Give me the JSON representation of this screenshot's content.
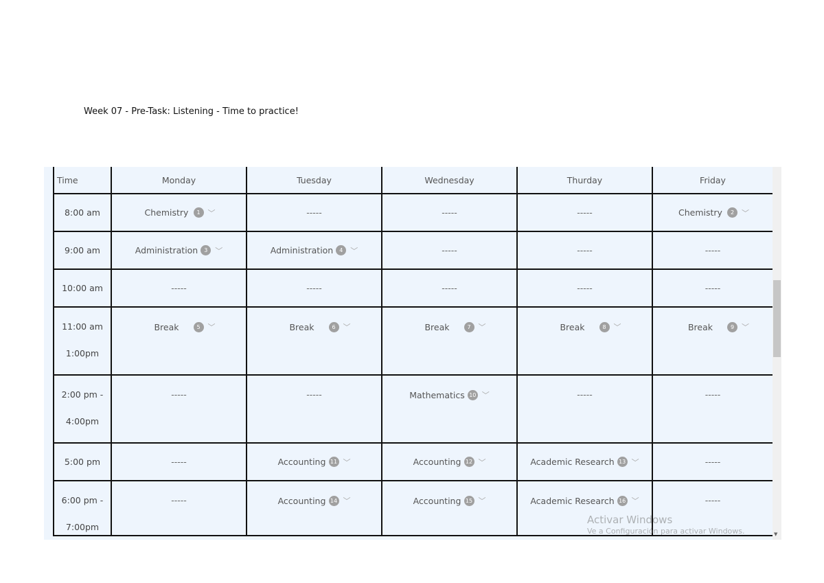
{
  "document_title": "Week 07 - Pre-Task: Listening - Time to practice!",
  "headers": [
    "Time",
    "Monday",
    "Tuesday",
    "Wednesday",
    "Thurday",
    "Friday"
  ],
  "rows": [
    {
      "time": [
        "8:00 am"
      ],
      "cells": [
        {
          "label": "Chemistry",
          "badge": "1"
        },
        {
          "label": "-----"
        },
        {
          "label": "-----"
        },
        {
          "label": "-----"
        },
        {
          "label": "Chemistry",
          "badge": "2"
        }
      ]
    },
    {
      "time": [
        "9:00 am"
      ],
      "cells": [
        {
          "label": "Administration",
          "badge": "3"
        },
        {
          "label": "Administration",
          "badge": "4"
        },
        {
          "label": "-----"
        },
        {
          "label": "-----"
        },
        {
          "label": "-----"
        }
      ]
    },
    {
      "time": [
        "10:00 am"
      ],
      "cells": [
        {
          "label": "-----"
        },
        {
          "label": "-----"
        },
        {
          "label": "-----"
        },
        {
          "label": "-----"
        },
        {
          "label": "-----"
        }
      ]
    },
    {
      "time": [
        "11:00 am",
        "1:00pm"
      ],
      "cells": [
        {
          "label": "Break",
          "badge": "5"
        },
        {
          "label": "Break",
          "badge": "6"
        },
        {
          "label": "Break",
          "badge": "7"
        },
        {
          "label": "Break",
          "badge": "8"
        },
        {
          "label": "Break",
          "badge": "9"
        }
      ]
    },
    {
      "time": [
        "2:00 pm -",
        "4:00pm"
      ],
      "cells": [
        {
          "label": "-----"
        },
        {
          "label": "-----"
        },
        {
          "label": "Mathematics",
          "badge": "10"
        },
        {
          "label": "-----"
        },
        {
          "label": "-----"
        }
      ]
    },
    {
      "time": [
        "5:00 pm"
      ],
      "cells": [
        {
          "label": "-----"
        },
        {
          "label": "Accounting",
          "badge": "11"
        },
        {
          "label": "Accounting",
          "badge": "12"
        },
        {
          "label": "Academic Research",
          "badge": "13"
        },
        {
          "label": "-----"
        }
      ]
    },
    {
      "time": [
        "6:00 pm -",
        "7:00pm"
      ],
      "cells": [
        {
          "label": "-----"
        },
        {
          "label": "Accounting",
          "badge": "14"
        },
        {
          "label": "Accounting",
          "badge": "15"
        },
        {
          "label": "Academic Research",
          "badge": "16"
        },
        {
          "label": "-----"
        }
      ]
    }
  ],
  "watermark": {
    "line1": "Activar Windows",
    "line2": "Ve a Configuración para activar Windows."
  }
}
